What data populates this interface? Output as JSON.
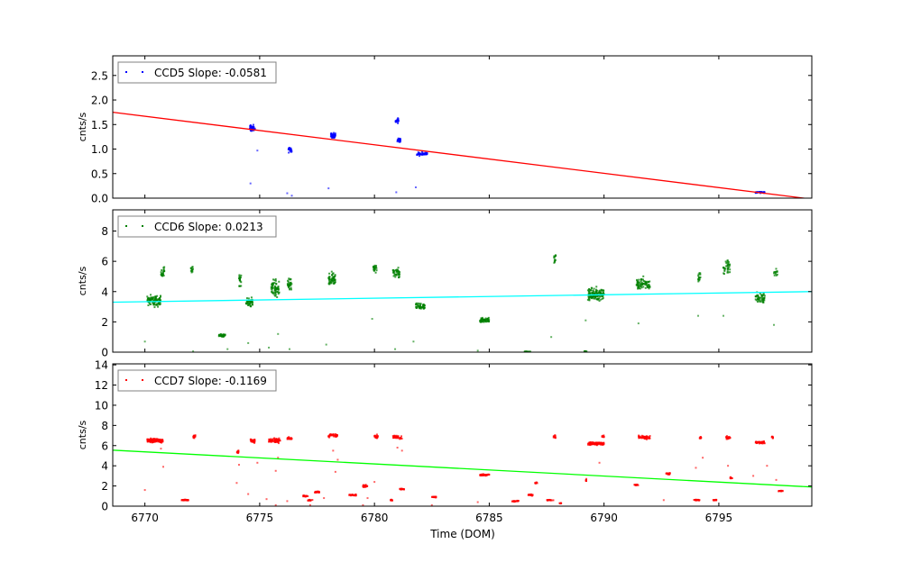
{
  "chart_data": {
    "type": "scatter",
    "xlabel": "Time (DOM)",
    "xlim": [
      6768.6,
      6799.05
    ],
    "xticks": [
      6770,
      6775,
      6780,
      6785,
      6790,
      6795
    ],
    "panels": [
      {
        "name": "CCD5",
        "legend": "CCD5 Slope: -0.0581",
        "legend_position": "upper-left",
        "ylabel": "cnts/s",
        "ylim": [
          0,
          2.9
        ],
        "yticks": [
          "0.0",
          "0.5",
          "1.0",
          "1.5",
          "2.0",
          "2.5"
        ],
        "point_color": "#0000ff",
        "fit_color": "#ff0000",
        "fit_line": {
          "x": [
            6768.6,
            6799.05
          ],
          "y": [
            1.75,
            -0.02
          ]
        },
        "clusters": [
          [
            6774.55,
            6774.8,
            1.42,
            0.1,
            40
          ],
          [
            6776.25,
            6776.4,
            0.98,
            0.07,
            25
          ],
          [
            6778.1,
            6778.3,
            1.28,
            0.07,
            35
          ],
          [
            6780.9,
            6781.05,
            1.58,
            0.08,
            20
          ],
          [
            6781.0,
            6781.15,
            1.18,
            0.06,
            20
          ],
          [
            6781.85,
            6782.3,
            0.9,
            0.05,
            50
          ],
          [
            6796.6,
            6797.0,
            0.12,
            0.02,
            30
          ]
        ],
        "outliers": [
          [
            6774.6,
            0.3
          ],
          [
            6774.9,
            0.97
          ],
          [
            6776.2,
            0.1
          ],
          [
            6776.4,
            0.05
          ],
          [
            6778.0,
            0.2
          ],
          [
            6780.95,
            0.12
          ],
          [
            6781.8,
            0.22
          ]
        ]
      },
      {
        "name": "CCD6",
        "legend": "CCD6 Slope: 0.0213",
        "legend_position": "upper-left",
        "ylabel": "cnts/s",
        "ylim": [
          0,
          9.4
        ],
        "yticks": [
          "0",
          "2",
          "4",
          "6",
          "8"
        ],
        "point_color": "#008000",
        "fit_color": "#00ffff",
        "fit_line": {
          "x": [
            6768.6,
            6799.05
          ],
          "y": [
            3.3,
            4.0
          ]
        },
        "clusters": [
          [
            6770.1,
            6770.7,
            3.4,
            0.5,
            90
          ],
          [
            6770.7,
            6770.85,
            5.3,
            0.5,
            20
          ],
          [
            6772.0,
            6772.1,
            5.5,
            0.5,
            12
          ],
          [
            6773.2,
            6773.5,
            1.1,
            0.12,
            35
          ],
          [
            6774.1,
            6774.2,
            4.8,
            0.6,
            20
          ],
          [
            6774.4,
            6774.7,
            3.3,
            0.4,
            40
          ],
          [
            6775.5,
            6775.85,
            4.2,
            0.8,
            60
          ],
          [
            6776.2,
            6776.4,
            4.5,
            0.5,
            30
          ],
          [
            6778.0,
            6778.3,
            4.8,
            0.6,
            50
          ],
          [
            6779.95,
            6780.1,
            5.5,
            0.4,
            20
          ],
          [
            6780.8,
            6781.1,
            5.2,
            0.5,
            35
          ],
          [
            6781.8,
            6782.2,
            3.0,
            0.3,
            50
          ],
          [
            6784.6,
            6785.0,
            2.1,
            0.25,
            50
          ],
          [
            6786.5,
            6786.8,
            0.03,
            0.02,
            15
          ],
          [
            6787.8,
            6787.9,
            6.2,
            0.5,
            12
          ],
          [
            6789.15,
            6789.25,
            0.05,
            0.03,
            10
          ],
          [
            6789.3,
            6790.0,
            3.8,
            0.6,
            120
          ],
          [
            6791.4,
            6792.0,
            4.5,
            0.6,
            70
          ],
          [
            6794.1,
            6794.2,
            5.0,
            0.5,
            15
          ],
          [
            6795.2,
            6795.5,
            5.6,
            0.6,
            35
          ],
          [
            6796.6,
            6797.0,
            3.6,
            0.5,
            50
          ],
          [
            6797.4,
            6797.55,
            5.3,
            0.5,
            12
          ]
        ],
        "outliers": [
          [
            6770.0,
            0.7
          ],
          [
            6772.1,
            0.05
          ],
          [
            6773.6,
            0.2
          ],
          [
            6774.5,
            0.6
          ],
          [
            6775.4,
            0.3
          ],
          [
            6775.8,
            1.2
          ],
          [
            6776.3,
            0.2
          ],
          [
            6777.9,
            0.5
          ],
          [
            6779.9,
            2.2
          ],
          [
            6780.9,
            0.2
          ],
          [
            6781.7,
            0.7
          ],
          [
            6784.5,
            0.1
          ],
          [
            6787.7,
            1.0
          ],
          [
            6789.2,
            2.1
          ],
          [
            6791.5,
            1.9
          ],
          [
            6794.1,
            2.4
          ],
          [
            6795.2,
            2.4
          ],
          [
            6797.4,
            1.8
          ]
        ]
      },
      {
        "name": "CCD7",
        "legend": "CCD7 Slope: -0.1169",
        "legend_position": "upper-left",
        "ylabel": "cnts/s",
        "ylim": [
          0,
          14.1
        ],
        "yticks": [
          "0",
          "2",
          "4",
          "6",
          "8",
          "10",
          "12",
          "14"
        ],
        "point_color": "#ff0000",
        "fit_color": "#00ff00",
        "fit_line": {
          "x": [
            6768.6,
            6799.05
          ],
          "y": [
            5.55,
            1.9
          ]
        },
        "clusters": [
          [
            6770.1,
            6770.8,
            6.5,
            0.3,
            120
          ],
          [
            6771.6,
            6771.9,
            0.6,
            0.06,
            30
          ],
          [
            6772.1,
            6772.2,
            6.9,
            0.3,
            12
          ],
          [
            6774.0,
            6774.1,
            5.4,
            0.25,
            12
          ],
          [
            6774.6,
            6774.8,
            6.5,
            0.3,
            30
          ],
          [
            6775.4,
            6775.9,
            6.5,
            0.3,
            60
          ],
          [
            6776.2,
            6776.4,
            6.7,
            0.2,
            25
          ],
          [
            6776.9,
            6777.1,
            1.0,
            0.1,
            20
          ],
          [
            6777.1,
            6777.3,
            0.6,
            0.08,
            12
          ],
          [
            6777.4,
            6777.6,
            1.4,
            0.1,
            20
          ],
          [
            6778.0,
            6778.4,
            7.0,
            0.25,
            45
          ],
          [
            6778.9,
            6779.2,
            1.1,
            0.08,
            25
          ],
          [
            6779.5,
            6779.7,
            2.0,
            0.15,
            20
          ],
          [
            6780.0,
            6780.15,
            6.9,
            0.25,
            15
          ],
          [
            6780.7,
            6780.8,
            0.6,
            0.1,
            10
          ],
          [
            6780.8,
            6781.2,
            6.8,
            0.25,
            40
          ],
          [
            6781.1,
            6781.3,
            1.7,
            0.08,
            15
          ],
          [
            6782.5,
            6782.7,
            0.9,
            0.07,
            15
          ],
          [
            6784.6,
            6785.0,
            3.1,
            0.1,
            50
          ],
          [
            6786.0,
            6786.3,
            0.5,
            0.07,
            20
          ],
          [
            6786.7,
            6786.9,
            1.1,
            0.1,
            15
          ],
          [
            6787.0,
            6787.1,
            2.3,
            0.1,
            8
          ],
          [
            6787.5,
            6787.8,
            0.6,
            0.06,
            15
          ],
          [
            6787.8,
            6787.9,
            6.9,
            0.3,
            10
          ],
          [
            6788.05,
            6788.15,
            0.3,
            0.05,
            6
          ],
          [
            6789.2,
            6789.25,
            2.6,
            0.2,
            6
          ],
          [
            6789.3,
            6790.0,
            6.2,
            0.2,
            90
          ],
          [
            6789.9,
            6790.0,
            6.9,
            0.2,
            10
          ],
          [
            6791.3,
            6791.5,
            2.1,
            0.1,
            15
          ],
          [
            6791.5,
            6792.0,
            6.8,
            0.25,
            45
          ],
          [
            6792.7,
            6792.9,
            3.2,
            0.15,
            15
          ],
          [
            6793.9,
            6794.2,
            0.6,
            0.06,
            15
          ],
          [
            6794.15,
            6794.25,
            6.8,
            0.2,
            8
          ],
          [
            6794.7,
            6794.9,
            0.6,
            0.06,
            12
          ],
          [
            6795.3,
            6795.5,
            6.8,
            0.2,
            20
          ],
          [
            6795.5,
            6795.6,
            2.8,
            0.1,
            10
          ],
          [
            6796.6,
            6797.0,
            6.3,
            0.15,
            40
          ],
          [
            6797.3,
            6797.4,
            6.8,
            0.2,
            8
          ],
          [
            6797.6,
            6797.8,
            1.5,
            0.1,
            12
          ]
        ],
        "outliers": [
          [
            6770.0,
            1.6
          ],
          [
            6770.7,
            5.7
          ],
          [
            6770.8,
            3.9
          ],
          [
            6774.0,
            2.3
          ],
          [
            6774.1,
            4.1
          ],
          [
            6774.5,
            1.2
          ],
          [
            6774.9,
            4.3
          ],
          [
            6775.3,
            0.7
          ],
          [
            6775.7,
            3.5
          ],
          [
            6775.8,
            4.8
          ],
          [
            6775.7,
            0.1
          ],
          [
            6776.2,
            0.5
          ],
          [
            6777.2,
            0.1
          ],
          [
            6777.8,
            0.8
          ],
          [
            6778.2,
            5.5
          ],
          [
            6778.3,
            3.4
          ],
          [
            6778.4,
            4.6
          ],
          [
            6779.5,
            0.1
          ],
          [
            6779.7,
            0.8
          ],
          [
            6780.0,
            2.4
          ],
          [
            6781.0,
            5.8
          ],
          [
            6781.2,
            5.5
          ],
          [
            6782.5,
            0.1
          ],
          [
            6784.5,
            0.4
          ],
          [
            6789.8,
            4.3
          ],
          [
            6792.6,
            0.6
          ],
          [
            6794.0,
            3.8
          ],
          [
            6794.3,
            4.8
          ],
          [
            6795.4,
            4.0
          ],
          [
            6796.5,
            3.0
          ],
          [
            6797.1,
            4.0
          ],
          [
            6797.5,
            2.6
          ]
        ]
      }
    ]
  }
}
